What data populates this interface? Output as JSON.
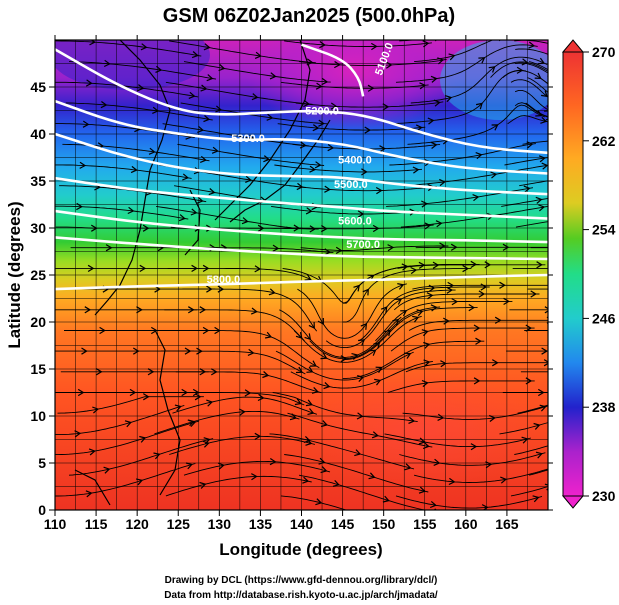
{
  "title": "GSM 06Z02Jan2025 (500.0hPa)",
  "chart_data": {
    "type": "heatmap",
    "title": "GSM 06Z02Jan2025 (500.0hPa)",
    "xlabel": "Longitude (degrees)",
    "ylabel": "Latitude  (degrees)",
    "xlim": [
      110,
      170
    ],
    "ylim": [
      0,
      50
    ],
    "x_ticks": [
      "110",
      "115",
      "120",
      "125",
      "130",
      "135",
      "140",
      "145",
      "150",
      "155",
      "160",
      "165"
    ],
    "y_ticks": [
      "0",
      "5",
      "10",
      "15",
      "20",
      "25",
      "30",
      "35",
      "40",
      "45"
    ],
    "colorbar": {
      "min": 230,
      "max": 270,
      "tick_labels": [
        "230",
        "238",
        "246",
        "254",
        "262",
        "270"
      ],
      "colors": [
        "#ee22cc",
        "#aa22cc",
        "#2222cc",
        "#2288ee",
        "#22cccc",
        "#22dd88",
        "#33cc33",
        "#88dd22",
        "#ddcc22",
        "#ffaa22",
        "#ff7722",
        "#ff4422",
        "#ee3333"
      ]
    },
    "contours": [
      {
        "label": "5200.0",
        "points": [
          [
            110,
            49
          ],
          [
            118,
            45
          ],
          [
            125,
            42.5
          ],
          [
            130,
            42
          ],
          [
            136,
            42.3
          ],
          [
            142,
            42.5
          ],
          [
            148,
            42
          ],
          [
            155,
            40
          ],
          [
            162,
            38.5
          ],
          [
            170,
            38
          ]
        ]
      },
      {
        "label": "5300.0",
        "points": [
          [
            110,
            43.5
          ],
          [
            118,
            41
          ],
          [
            125,
            40
          ],
          [
            132,
            39.3
          ],
          [
            138,
            39.5
          ],
          [
            145,
            39
          ],
          [
            152,
            37.5
          ],
          [
            160,
            36.3
          ],
          [
            170,
            35.8
          ]
        ]
      },
      {
        "label": "5400.0",
        "points": [
          [
            110,
            40
          ],
          [
            120,
            37.2
          ],
          [
            130,
            35.7
          ],
          [
            140,
            35.5
          ],
          [
            145,
            35.4
          ],
          [
            152,
            34.6
          ],
          [
            160,
            34
          ],
          [
            170,
            33.6
          ]
        ]
      },
      {
        "label": "5500.0",
        "points": [
          [
            110,
            35.3
          ],
          [
            120,
            34
          ],
          [
            130,
            33.2
          ],
          [
            140,
            32.5
          ],
          [
            145,
            32.2
          ],
          [
            150,
            31.8
          ],
          [
            160,
            31.4
          ],
          [
            170,
            31
          ]
        ]
      },
      {
        "label": "5600.0",
        "points": [
          [
            110,
            31.8
          ],
          [
            120,
            30.6
          ],
          [
            130,
            29.8
          ],
          [
            140,
            29.2
          ],
          [
            145,
            29
          ],
          [
            150,
            28.8
          ],
          [
            160,
            28.7
          ],
          [
            170,
            28.5
          ]
        ]
      },
      {
        "label": "5700.0",
        "points": [
          [
            110,
            29
          ],
          [
            120,
            28.3
          ],
          [
            130,
            27.7
          ],
          [
            140,
            27.2
          ],
          [
            145,
            27
          ],
          [
            150,
            26.9
          ],
          [
            160,
            26.8
          ],
          [
            170,
            26.7
          ]
        ]
      },
      {
        "label": "5800.0",
        "points": [
          [
            110,
            23.5
          ],
          [
            120,
            23.8
          ],
          [
            130,
            24
          ],
          [
            140,
            24.3
          ],
          [
            150,
            24.5
          ],
          [
            160,
            24.8
          ],
          [
            170,
            25
          ]
        ]
      },
      {
        "label": "",
        "points": [
          [
            140,
            49.5
          ],
          [
            145,
            48
          ],
          [
            147,
            46
          ],
          [
            147.5,
            44
          ]
        ]
      }
    ],
    "contour_labels": [
      {
        "text": "5200.0",
        "x": 142.5,
        "y": 42.5
      },
      {
        "text": "5300.0",
        "x": 133.5,
        "y": 39.6
      },
      {
        "text": "5400.0",
        "x": 146.5,
        "y": 37.3
      },
      {
        "text": "5500.0",
        "x": 146,
        "y": 34.7
      },
      {
        "text": "5600.0",
        "x": 146.5,
        "y": 30.8
      },
      {
        "text": "5700.0",
        "x": 147.5,
        "y": 28.3
      },
      {
        "text": "5800.0",
        "x": 130.5,
        "y": 24.6
      },
      {
        "text": "5100.0",
        "x": 150,
        "y": 48
      }
    ],
    "features": {
      "cyclone_center": [
        145,
        18
      ],
      "anticyclone_center": [
        166,
        46
      ]
    }
  },
  "credits": [
    "Drawing by DCL (https://www.gfd-dennou.org/library/dcl/)",
    "Data from http://database.rish.kyoto-u.ac.jp/arch/jmadata/"
  ]
}
